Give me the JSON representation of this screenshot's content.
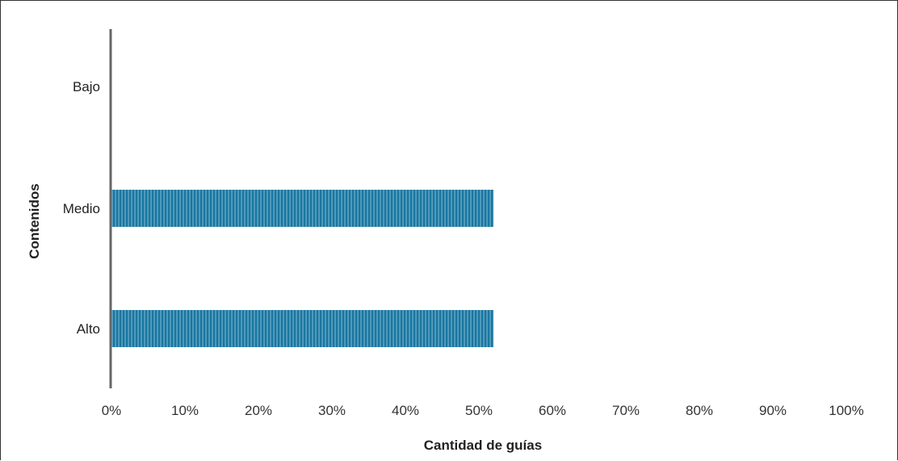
{
  "chart_data": {
    "type": "bar",
    "orientation": "horizontal",
    "categories": [
      "Bajo",
      "Medio",
      "Alto"
    ],
    "values": [
      0,
      52,
      52
    ],
    "value_unit": "%",
    "xlabel": "Cantidad de guías",
    "ylabel": "Contenidos",
    "xlim": [
      0,
      100
    ],
    "xticks": [
      "0%",
      "10%",
      "20%",
      "30%",
      "40%",
      "50%",
      "60%",
      "70%",
      "80%",
      "90%",
      "100%"
    ],
    "grid": false,
    "legend": "none",
    "bar_color": "#1a76a0",
    "bar_stripe_color": "#8fc4dc",
    "axis_color": "#666666"
  }
}
